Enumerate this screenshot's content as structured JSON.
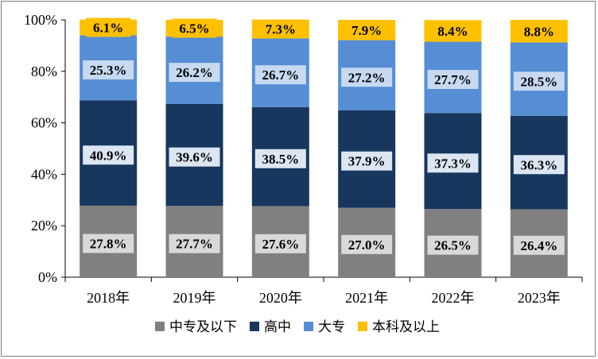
{
  "chart_data": {
    "type": "bar",
    "stacked": true,
    "title": "",
    "xlabel": "",
    "ylabel": "",
    "ylim": [
      0,
      100
    ],
    "y_ticks": [
      "0%",
      "20%",
      "40%",
      "60%",
      "80%",
      "100%"
    ],
    "legend_position": "bottom",
    "categories": [
      "2018年",
      "2019年",
      "2020年",
      "2021年",
      "2022年",
      "2023年"
    ],
    "series": [
      {
        "name": "中专及以下",
        "color": "#808080",
        "label_bg": "#d9d9d9",
        "values": [
          27.8,
          27.7,
          27.6,
          27.0,
          26.5,
          26.4
        ],
        "labels": [
          "27.8%",
          "27.7%",
          "27.6%",
          "27.0%",
          "26.5%",
          "26.4%"
        ]
      },
      {
        "name": "高中",
        "color": "#17375e",
        "label_bg": "#dce6f2",
        "values": [
          40.9,
          39.6,
          38.5,
          37.9,
          37.3,
          36.3
        ],
        "labels": [
          "40.9%",
          "39.6%",
          "38.5%",
          "37.9%",
          "37.3%",
          "36.3%"
        ]
      },
      {
        "name": "大专",
        "color": "#558ed5",
        "label_bg": "#c6d9f1",
        "values": [
          25.3,
          26.2,
          26.7,
          27.2,
          27.7,
          28.5
        ],
        "labels": [
          "25.3%",
          "26.2%",
          "26.7%",
          "27.2%",
          "27.7%",
          "28.5%"
        ]
      },
      {
        "name": "本科及以上",
        "color": "#ffc000",
        "label_bg": "#ffc000",
        "values": [
          6.1,
          6.5,
          7.3,
          7.9,
          8.4,
          8.8
        ],
        "labels": [
          "6.1%",
          "6.5%",
          "7.3%",
          "7.9%",
          "8.4%",
          "8.8%"
        ]
      }
    ]
  }
}
